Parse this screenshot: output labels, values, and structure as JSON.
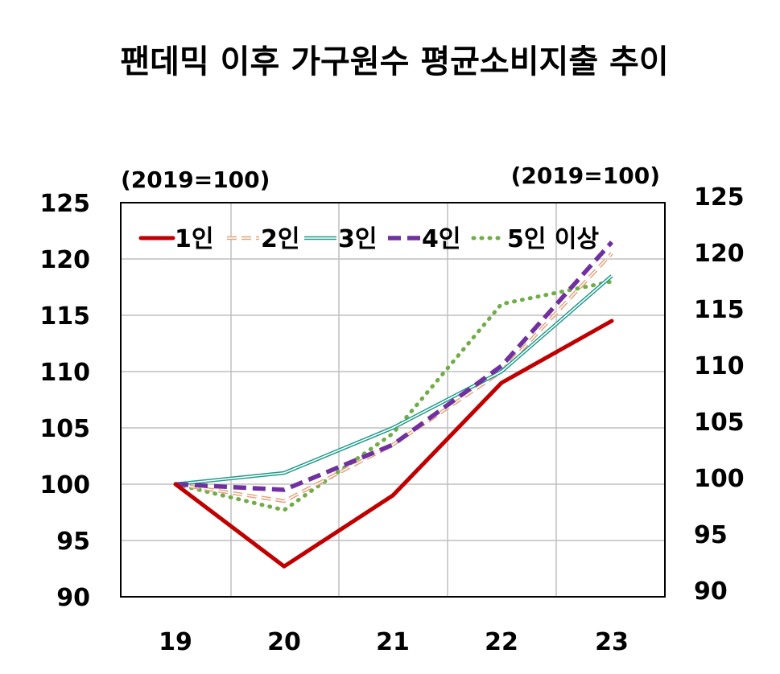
{
  "chart_data": {
    "type": "line",
    "title": "팬데믹 이후 가구원수 평균소비지출 추이",
    "unit_left": "(2019=100)",
    "unit_right": "(2019=100)",
    "x": [
      "19",
      "20",
      "21",
      "22",
      "23"
    ],
    "ylim": [
      90,
      125
    ],
    "y_ticks": [
      "90",
      "95",
      "100",
      "105",
      "110",
      "115",
      "120",
      "125"
    ],
    "grid": true,
    "legend_position": "top-left",
    "series": [
      {
        "name": "1인",
        "color": "#c00000",
        "style": "solid-thick",
        "values": [
          100,
          92.7,
          99,
          109,
          114.5
        ]
      },
      {
        "name": "2인",
        "color": "#e3a27b",
        "style": "double-dashed",
        "values": [
          100,
          98.5,
          103.5,
          110,
          120.5
        ]
      },
      {
        "name": "3인",
        "color": "#1f9a8a",
        "style": "double",
        "values": [
          100,
          101,
          105,
          110,
          118.5
        ]
      },
      {
        "name": "4인",
        "color": "#7030a0",
        "style": "dashed",
        "values": [
          100,
          99.5,
          103.5,
          110.5,
          121.5
        ]
      },
      {
        "name": "5인 이상",
        "color": "#70ad47",
        "style": "dotted",
        "values": [
          100,
          97.7,
          104.5,
          116,
          118
        ]
      }
    ]
  }
}
